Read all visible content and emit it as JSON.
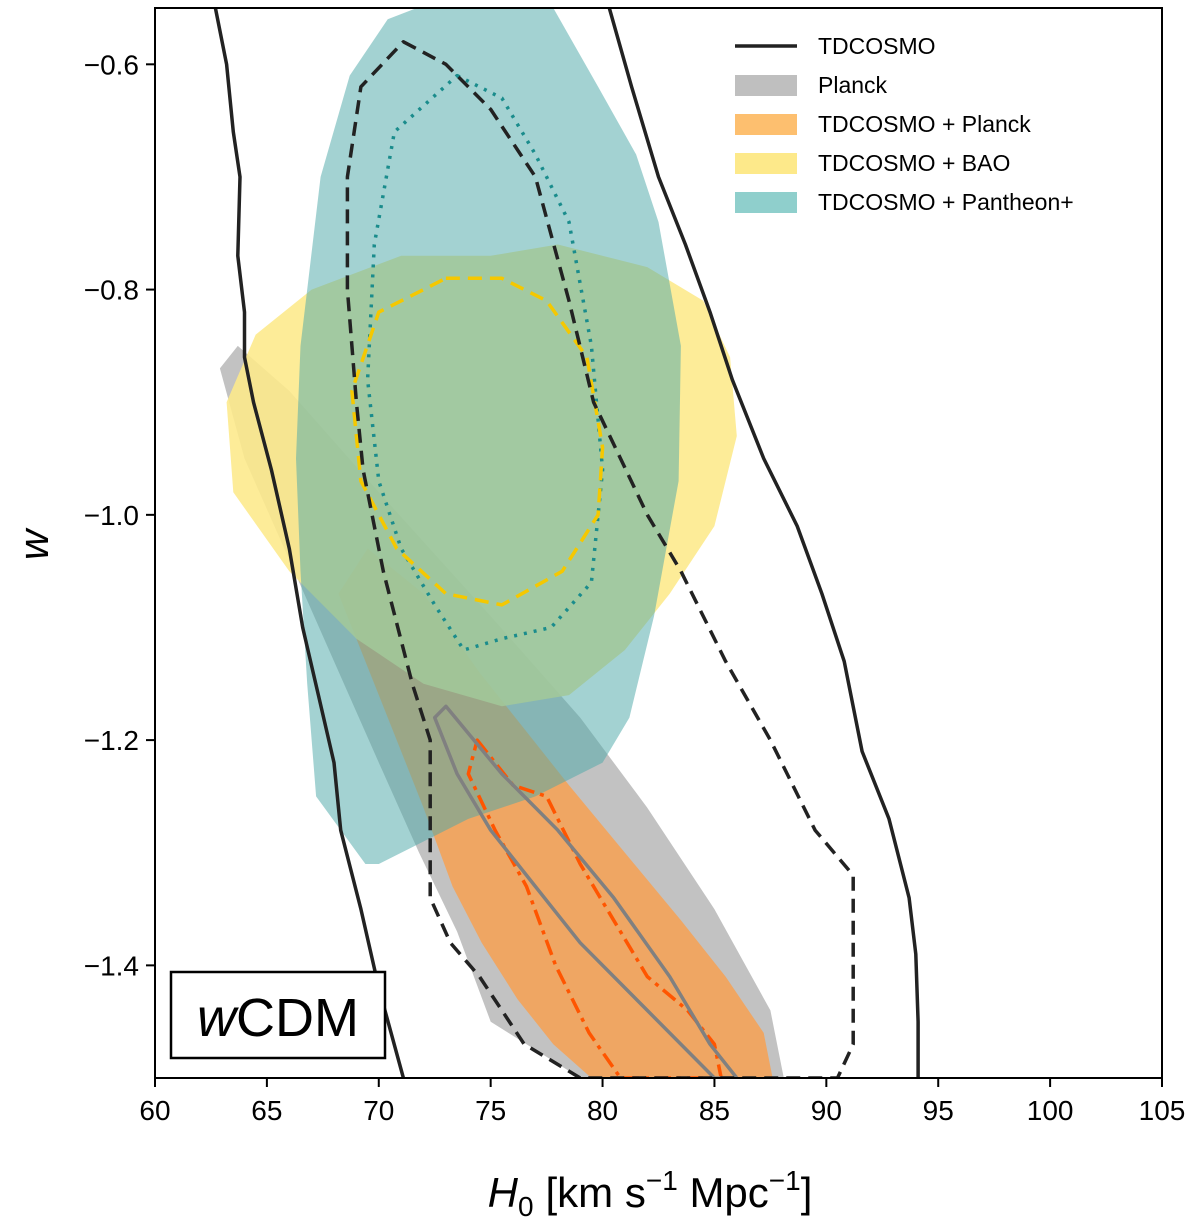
{
  "chart_data": {
    "type": "contour",
    "title": "",
    "xlabel_main": "H",
    "xlabel_sub": "0",
    "xlabel_units_parts": [
      "[km s",
      "−1",
      " Mpc",
      "−1",
      "]"
    ],
    "ylabel": "w",
    "xlim": [
      60,
      105
    ],
    "ylim": [
      -1.5,
      -0.55
    ],
    "xticks": [
      60,
      65,
      70,
      75,
      80,
      85,
      90,
      95,
      100,
      105
    ],
    "yticks": [
      -1.4,
      -1.2,
      -1.0,
      -0.8,
      -0.6
    ],
    "model_label_italic": "w",
    "model_label_rest": "CDM",
    "legend": [
      {
        "label": "TDCOSMO",
        "color": "#222222",
        "kind": "line"
      },
      {
        "label": "Planck",
        "color": "#bfbfbf",
        "kind": "patch"
      },
      {
        "label": "TDCOSMO + Planck",
        "color": "#fdbf6f",
        "kind": "patch"
      },
      {
        "label": "TDCOSMO + BAO",
        "color": "#fde98a",
        "kind": "patch"
      },
      {
        "label": "TDCOSMO + Pantheon+",
        "color": "#8fcfcc",
        "kind": "patch"
      }
    ],
    "series": [
      {
        "name": "Planck 95%",
        "kind": "fill",
        "color": "#bfbfbf",
        "opacity": 0.95,
        "points": [
          [
            62.9,
            -0.87
          ],
          [
            63.7,
            -0.85
          ],
          [
            66,
            -0.89
          ],
          [
            70,
            -0.98
          ],
          [
            75,
            -1.09
          ],
          [
            79,
            -1.18
          ],
          [
            82,
            -1.26
          ],
          [
            85,
            -1.35
          ],
          [
            87.5,
            -1.44
          ],
          [
            88.1,
            -1.5
          ],
          [
            85.9,
            -1.5
          ],
          [
            81,
            -1.5
          ],
          [
            79,
            -1.5
          ],
          [
            75,
            -1.45
          ],
          [
            73.5,
            -1.37
          ],
          [
            71.8,
            -1.3
          ],
          [
            70,
            -1.22
          ],
          [
            68,
            -1.13
          ],
          [
            66,
            -1.04
          ],
          [
            64,
            -0.95
          ]
        ]
      },
      {
        "name": "TDCOSMO + Planck 95%",
        "kind": "fill",
        "color": "#f9a04e",
        "opacity": 0.82,
        "points": [
          [
            68.2,
            -1.07
          ],
          [
            69.5,
            -1.03
          ],
          [
            72,
            -1.07
          ],
          [
            74.5,
            -1.14
          ],
          [
            76.5,
            -1.19
          ],
          [
            78.5,
            -1.24
          ],
          [
            81,
            -1.3
          ],
          [
            83.5,
            -1.36
          ],
          [
            85.5,
            -1.41
          ],
          [
            87.2,
            -1.46
          ],
          [
            87.6,
            -1.5
          ],
          [
            79.5,
            -1.5
          ],
          [
            77.8,
            -1.47
          ],
          [
            76.2,
            -1.43
          ],
          [
            74.6,
            -1.38
          ],
          [
            73.3,
            -1.33
          ],
          [
            72,
            -1.26
          ],
          [
            70.8,
            -1.2
          ],
          [
            69.6,
            -1.14
          ]
        ]
      },
      {
        "name": "TDCOSMO + BAO 95%",
        "kind": "fill",
        "color": "#fde98a",
        "opacity": 0.88,
        "points": [
          [
            75,
            -0.77
          ],
          [
            78,
            -0.76
          ],
          [
            82,
            -0.78
          ],
          [
            84.5,
            -0.81
          ],
          [
            85.7,
            -0.86
          ],
          [
            86,
            -0.93
          ],
          [
            85,
            -1.01
          ],
          [
            83,
            -1.07
          ],
          [
            81,
            -1.12
          ],
          [
            78.5,
            -1.16
          ],
          [
            75.5,
            -1.17
          ],
          [
            72,
            -1.15
          ],
          [
            69,
            -1.11
          ],
          [
            66,
            -1.05
          ],
          [
            63.5,
            -0.98
          ],
          [
            63.2,
            -0.9
          ],
          [
            64.5,
            -0.84
          ],
          [
            67,
            -0.8
          ],
          [
            71,
            -0.77
          ]
        ]
      },
      {
        "name": "TDCOSMO + Pantheon+ 95%",
        "kind": "fill",
        "color": "#4fa8a8",
        "opacity": 0.52,
        "points": [
          [
            71.7,
            -0.55
          ],
          [
            77.8,
            -0.55
          ],
          [
            79.8,
            -0.62
          ],
          [
            81.5,
            -0.68
          ],
          [
            82.5,
            -0.74
          ],
          [
            83.5,
            -0.85
          ],
          [
            83.4,
            -0.97
          ],
          [
            82.3,
            -1.09
          ],
          [
            81.2,
            -1.18
          ],
          [
            80,
            -1.22
          ],
          [
            77,
            -1.25
          ],
          [
            74,
            -1.27
          ],
          [
            72,
            -1.29
          ],
          [
            70,
            -1.31
          ],
          [
            69.4,
            -1.31
          ],
          [
            67.2,
            -1.25
          ],
          [
            66.8,
            -1.15
          ],
          [
            66.5,
            -1.05
          ],
          [
            66.3,
            -0.95
          ],
          [
            66.5,
            -0.85
          ],
          [
            67.4,
            -0.7
          ],
          [
            68.7,
            -0.61
          ],
          [
            70.4,
            -0.56
          ]
        ]
      },
      {
        "name": "TDCOSMO + Pantheon+ 68%",
        "kind": "line",
        "color": "#1a8c8c",
        "dash": "3 7",
        "width": 3.5,
        "points": [
          [
            73.5,
            -0.61
          ],
          [
            75.5,
            -0.63
          ],
          [
            77,
            -0.68
          ],
          [
            78.5,
            -0.74
          ],
          [
            79.5,
            -0.85
          ],
          [
            80,
            -0.96
          ],
          [
            79.5,
            -1.06
          ],
          [
            77.7,
            -1.1
          ],
          [
            75.5,
            -1.11
          ],
          [
            73.8,
            -1.12
          ],
          [
            72.5,
            -1.08
          ],
          [
            71,
            -1.03
          ],
          [
            70,
            -0.97
          ],
          [
            69.5,
            -0.88
          ],
          [
            69.8,
            -0.76
          ],
          [
            70.7,
            -0.66
          ]
        ]
      },
      {
        "name": "TDCOSMO + BAO 68%",
        "kind": "line",
        "color": "#f5c800",
        "dash": "14 8",
        "width": 3.5,
        "points": [
          [
            73,
            -0.79
          ],
          [
            75.5,
            -0.79
          ],
          [
            77.5,
            -0.81
          ],
          [
            79.3,
            -0.86
          ],
          [
            80,
            -0.94
          ],
          [
            79.8,
            -1
          ],
          [
            78.2,
            -1.05
          ],
          [
            75.5,
            -1.08
          ],
          [
            73,
            -1.07
          ],
          [
            70.8,
            -1.03
          ],
          [
            69.2,
            -0.97
          ],
          [
            68.8,
            -0.89
          ],
          [
            70,
            -0.82
          ]
        ]
      },
      {
        "name": "TDCOSMO + Planck 68%",
        "kind": "line",
        "color": "#ff5500",
        "dash": "16 6 4 6",
        "width": 3.5,
        "points": [
          [
            74.4,
            -1.2
          ],
          [
            76,
            -1.24
          ],
          [
            77.5,
            -1.25
          ],
          [
            79,
            -1.31
          ],
          [
            80.5,
            -1.36
          ],
          [
            82,
            -1.41
          ],
          [
            83.8,
            -1.44
          ],
          [
            85,
            -1.47
          ],
          [
            85.3,
            -1.5
          ],
          [
            80.8,
            -1.5
          ],
          [
            79.4,
            -1.46
          ],
          [
            77.9,
            -1.4
          ],
          [
            76.6,
            -1.33
          ],
          [
            75.2,
            -1.28
          ],
          [
            74,
            -1.23
          ]
        ]
      },
      {
        "name": "Planck 68%",
        "kind": "line",
        "color": "#808080",
        "dash": "",
        "width": 3.5,
        "points": [
          [
            72.5,
            -1.18
          ],
          [
            73,
            -1.17
          ],
          [
            75.5,
            -1.23
          ],
          [
            78,
            -1.28
          ],
          [
            80.5,
            -1.34
          ],
          [
            83,
            -1.41
          ],
          [
            84.8,
            -1.47
          ],
          [
            86,
            -1.5
          ],
          [
            85,
            -1.5
          ],
          [
            82,
            -1.44
          ],
          [
            79,
            -1.38
          ],
          [
            77,
            -1.33
          ],
          [
            75,
            -1.28
          ],
          [
            73.5,
            -1.23
          ]
        ]
      },
      {
        "name": "TDCOSMO 68%",
        "kind": "line",
        "color": "#222222",
        "dash": "14 8",
        "width": 3.5,
        "points": [
          [
            71.1,
            -0.58
          ],
          [
            73,
            -0.6
          ],
          [
            75,
            -0.64
          ],
          [
            77,
            -0.7
          ],
          [
            78.5,
            -0.81
          ],
          [
            79.6,
            -0.9
          ],
          [
            80.8,
            -0.95
          ],
          [
            82,
            -1
          ],
          [
            83.5,
            -1.05
          ],
          [
            85.5,
            -1.13
          ],
          [
            87.5,
            -1.2
          ],
          [
            89.5,
            -1.28
          ],
          [
            91.2,
            -1.32
          ],
          [
            91.2,
            -1.47
          ],
          [
            90.5,
            -1.5
          ],
          [
            86,
            -1.5
          ],
          [
            83.5,
            -1.5
          ],
          [
            79.3,
            -1.5
          ],
          [
            79,
            -1.5
          ],
          [
            76.5,
            -1.47
          ],
          [
            75.5,
            -1.44
          ],
          [
            74.5,
            -1.41
          ],
          [
            73.2,
            -1.38
          ],
          [
            72.3,
            -1.34
          ],
          [
            72.3,
            -1.2
          ],
          [
            71.5,
            -1.15
          ],
          [
            70.2,
            -1.05
          ],
          [
            69.3,
            -0.96
          ],
          [
            69,
            -0.9
          ],
          [
            68.6,
            -0.8
          ],
          [
            68.6,
            -0.7
          ],
          [
            69.2,
            -0.62
          ]
        ]
      },
      {
        "name": "TDCOSMO 95% left",
        "kind": "line",
        "color": "#222222",
        "dash": "",
        "width": 3.5,
        "closed": false,
        "points": [
          [
            62.7,
            -0.55
          ],
          [
            63.2,
            -0.6
          ],
          [
            63.5,
            -0.66
          ],
          [
            63.8,
            -0.7
          ],
          [
            63.7,
            -0.77
          ],
          [
            64,
            -0.82
          ],
          [
            64,
            -0.86
          ],
          [
            64.4,
            -0.9
          ],
          [
            65.2,
            -0.96
          ],
          [
            66,
            -1.03
          ],
          [
            66.6,
            -1.1
          ],
          [
            67.3,
            -1.16
          ],
          [
            68,
            -1.22
          ],
          [
            68.3,
            -1.28
          ],
          [
            69.2,
            -1.35
          ],
          [
            70,
            -1.42
          ],
          [
            71.1,
            -1.5
          ]
        ]
      },
      {
        "name": "TDCOSMO 95% right",
        "kind": "line",
        "color": "#222222",
        "dash": "",
        "width": 3.5,
        "closed": false,
        "points": [
          [
            80.3,
            -0.55
          ],
          [
            81.3,
            -0.62
          ],
          [
            82.5,
            -0.7
          ],
          [
            83.7,
            -0.76
          ],
          [
            84.8,
            -0.82
          ],
          [
            85.8,
            -0.88
          ],
          [
            87.2,
            -0.95
          ],
          [
            88.7,
            -1.01
          ],
          [
            89.8,
            -1.07
          ],
          [
            90.8,
            -1.13
          ],
          [
            91.6,
            -1.21
          ],
          [
            92.8,
            -1.27
          ],
          [
            93.7,
            -1.34
          ],
          [
            94,
            -1.39
          ],
          [
            94.1,
            -1.45
          ],
          [
            94.1,
            -1.5
          ]
        ]
      }
    ]
  }
}
